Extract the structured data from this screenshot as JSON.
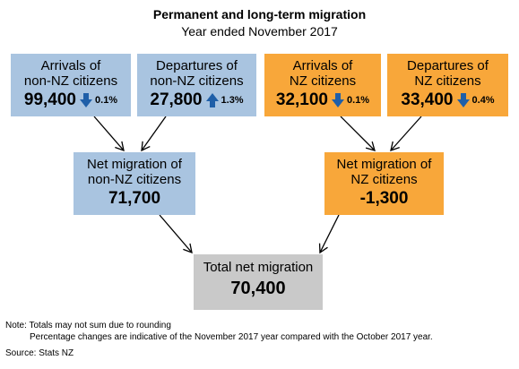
{
  "title": "Permanent and long-term migration",
  "subtitle": "Year ended November 2017",
  "colors": {
    "non_nz": "#a9c4e0",
    "nz": "#f8a73a",
    "total": "#c9c9c9",
    "arrow_blue": "#1f5fa8"
  },
  "boxes": {
    "arr_non_nz": {
      "label1": "Arrivals of",
      "label2": "non-NZ citizens",
      "value": "99,400",
      "pct": "0.1%",
      "trend_icon": "arrow-down-icon"
    },
    "dep_non_nz": {
      "label1": "Departures of",
      "label2": "non-NZ citizens",
      "value": "27,800",
      "pct": "1.3%",
      "trend_icon": "arrow-up-icon"
    },
    "arr_nz": {
      "label1": "Arrivals of",
      "label2": "NZ citizens",
      "value": "32,100",
      "pct": "0.1%",
      "trend_icon": "arrow-down-icon"
    },
    "dep_nz": {
      "label1": "Departures of",
      "label2": "NZ citizens",
      "value": "33,400",
      "pct": "0.4%",
      "trend_icon": "arrow-down-icon"
    },
    "net_non_nz": {
      "label1": "Net migration of",
      "label2": "non-NZ citizens",
      "value": "71,700"
    },
    "net_nz": {
      "label1": "Net migration of",
      "label2": "NZ citizens",
      "value": "-1,300"
    },
    "total": {
      "label": "Total net migration",
      "value": "70,400"
    }
  },
  "notes": {
    "note1": "Note: Totals may not sum due to rounding",
    "note2": "Percentage changes are indicative of the November 2017 year compared with the October 2017 year.",
    "source": "Source: Stats NZ"
  }
}
